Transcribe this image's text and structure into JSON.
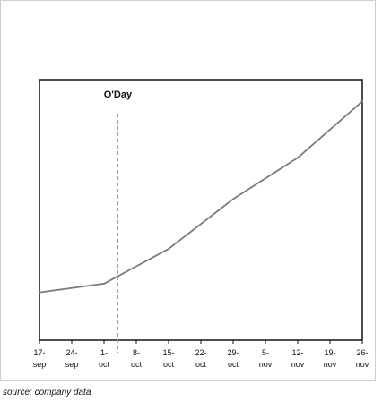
{
  "chart_data": {
    "type": "line",
    "title": "",
    "xlabel": "",
    "ylabel": "",
    "x_tick_labels": [
      [
        "17-",
        "sep"
      ],
      [
        "24-",
        "sep"
      ],
      [
        "1-",
        "oct"
      ],
      [
        "8-",
        "oct"
      ],
      [
        "15-",
        "oct"
      ],
      [
        "22-",
        "oct"
      ],
      [
        "29-",
        "oct"
      ],
      [
        "5-",
        "nov"
      ],
      [
        "12-",
        "nov"
      ],
      [
        "19-",
        "nov"
      ],
      [
        "26-",
        "nov"
      ]
    ],
    "series": [
      {
        "name": "",
        "color": "#7a7a7a",
        "points": [
          {
            "x": "2021-09-17",
            "y": 22
          },
          {
            "x": "2021-10-01",
            "y": 26
          },
          {
            "x": "2021-10-15",
            "y": 42
          },
          {
            "x": "2021-10-29",
            "y": 65
          },
          {
            "x": "2021-11-12",
            "y": 84
          },
          {
            "x": "2021-11-26",
            "y": 110
          }
        ]
      }
    ],
    "vertical_marker": {
      "label": "O'Day",
      "x": "2021-10-04",
      "color": "#f08a3c",
      "style": "dashed"
    },
    "xlim": [
      "2021-09-17",
      "2021-11-26"
    ],
    "ylim": [
      0,
      120
    ],
    "grid": false,
    "legend": "none"
  },
  "source_note": "source: company data"
}
